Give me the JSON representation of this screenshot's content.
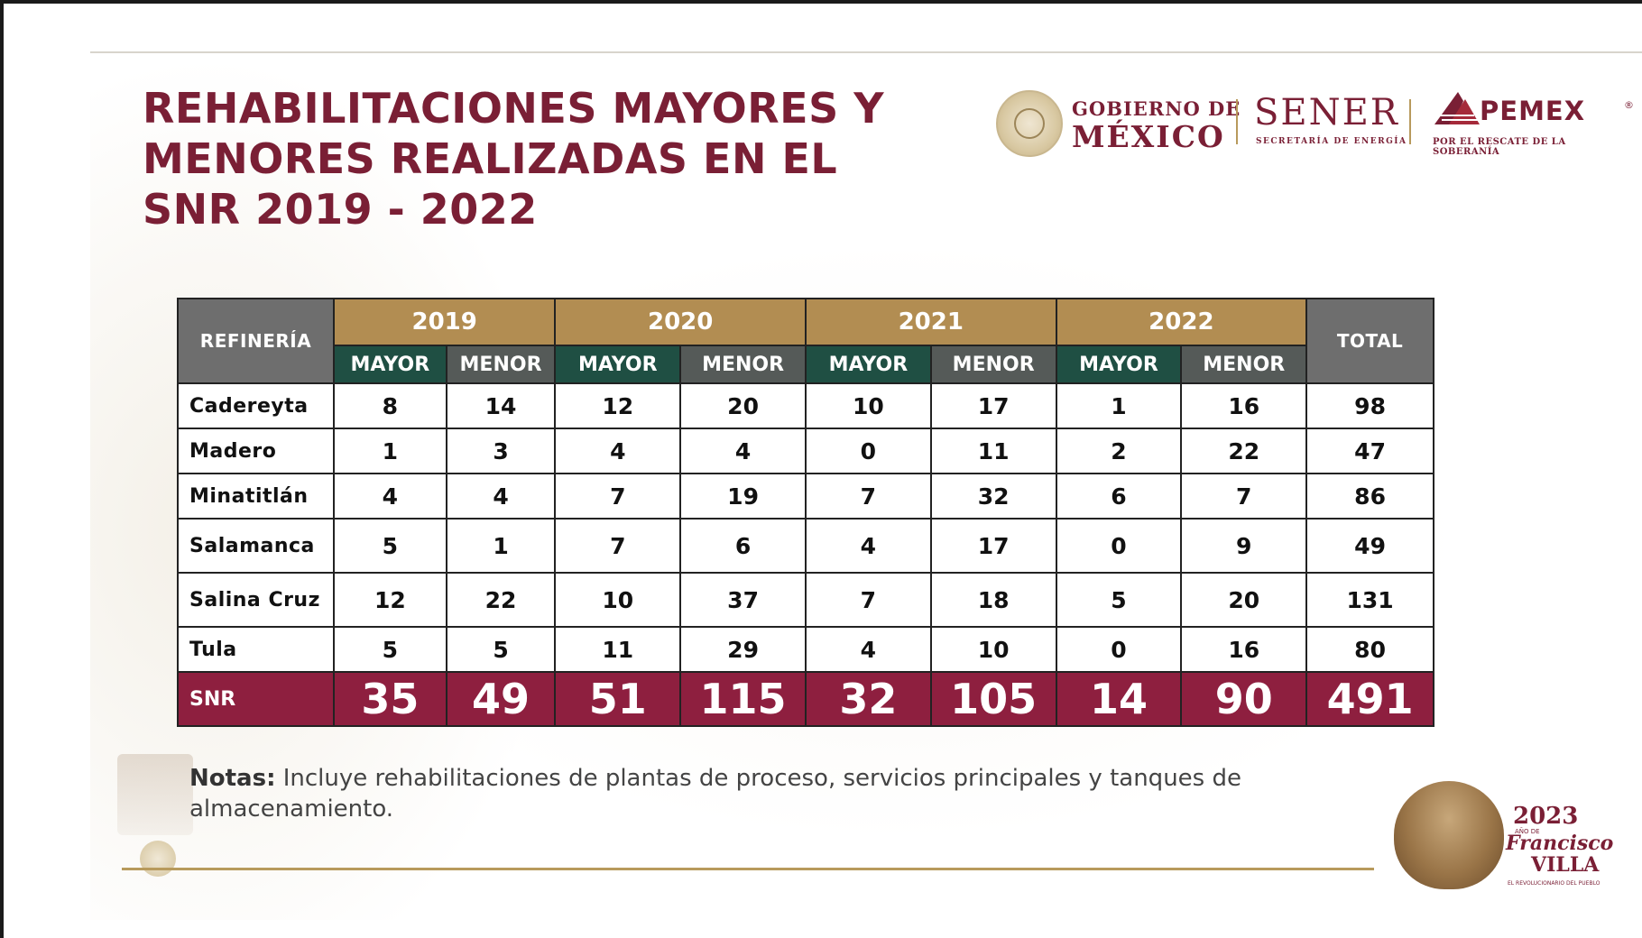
{
  "title": {
    "line1": "REHABILITACIONES MAYORES Y",
    "line2": "MENORES REALIZADAS EN EL",
    "line3": "SNR 2019 - 2022"
  },
  "logos": {
    "gobierno_top": "GOBIERNO DE",
    "gobierno_bottom": "MÉXICO",
    "sener_name": "SENER",
    "sener_sub": "SECRETARÍA DE ENERGÍA",
    "pemex_name": "PEMEX",
    "pemex_reg": "®",
    "pemex_sub": "POR EL RESCATE DE LA SOBERANÍA"
  },
  "table": {
    "header_refineria": "REFINERÍA",
    "header_total": "TOTAL",
    "years": [
      "2019",
      "2020",
      "2021",
      "2022"
    ],
    "sub_mayor": "MAYOR",
    "sub_menor": "MENOR",
    "rows": [
      {
        "name": "Cadereyta",
        "values": [
          "8",
          "14",
          "12",
          "20",
          "10",
          "17",
          "1",
          "16"
        ],
        "total": "98"
      },
      {
        "name": "Madero",
        "values": [
          "1",
          "3",
          "4",
          "4",
          "0",
          "11",
          "2",
          "22"
        ],
        "total": "47"
      },
      {
        "name": "Minatitlán",
        "values": [
          "4",
          "4",
          "7",
          "19",
          "7",
          "32",
          "6",
          "7"
        ],
        "total": "86"
      },
      {
        "name": "Salamanca",
        "values": [
          "5",
          "1",
          "7",
          "6",
          "4",
          "17",
          "0",
          "9"
        ],
        "total": "49"
      },
      {
        "name": "Salina Cruz",
        "values": [
          "12",
          "22",
          "10",
          "37",
          "7",
          "18",
          "5",
          "20"
        ],
        "total": "131"
      },
      {
        "name": "Tula",
        "values": [
          "5",
          "5",
          "11",
          "29",
          "4",
          "10",
          "0",
          "16"
        ],
        "total": "80"
      }
    ],
    "snr": {
      "name": "SNR",
      "values": [
        "35",
        "49",
        "51",
        "115",
        "32",
        "105",
        "14",
        "90"
      ],
      "total": "491"
    }
  },
  "notes": {
    "label": "Notas:",
    "text": " Incluye rehabilitaciones de plantas de proceso, servicios principales y tanques de almacenamiento."
  },
  "villa": {
    "year": "2023",
    "small": "AÑO DE",
    "name1": "Francisco",
    "name2": "VILLA",
    "tag": "EL REVOLUCIONARIO DEL PUEBLO"
  },
  "colors": {
    "brand_maroon": "#7a1f35",
    "gold": "#b28d52",
    "green": "#1f4f43",
    "snr_row": "#8e1f3f",
    "gray_header": "#6e6e6e"
  }
}
